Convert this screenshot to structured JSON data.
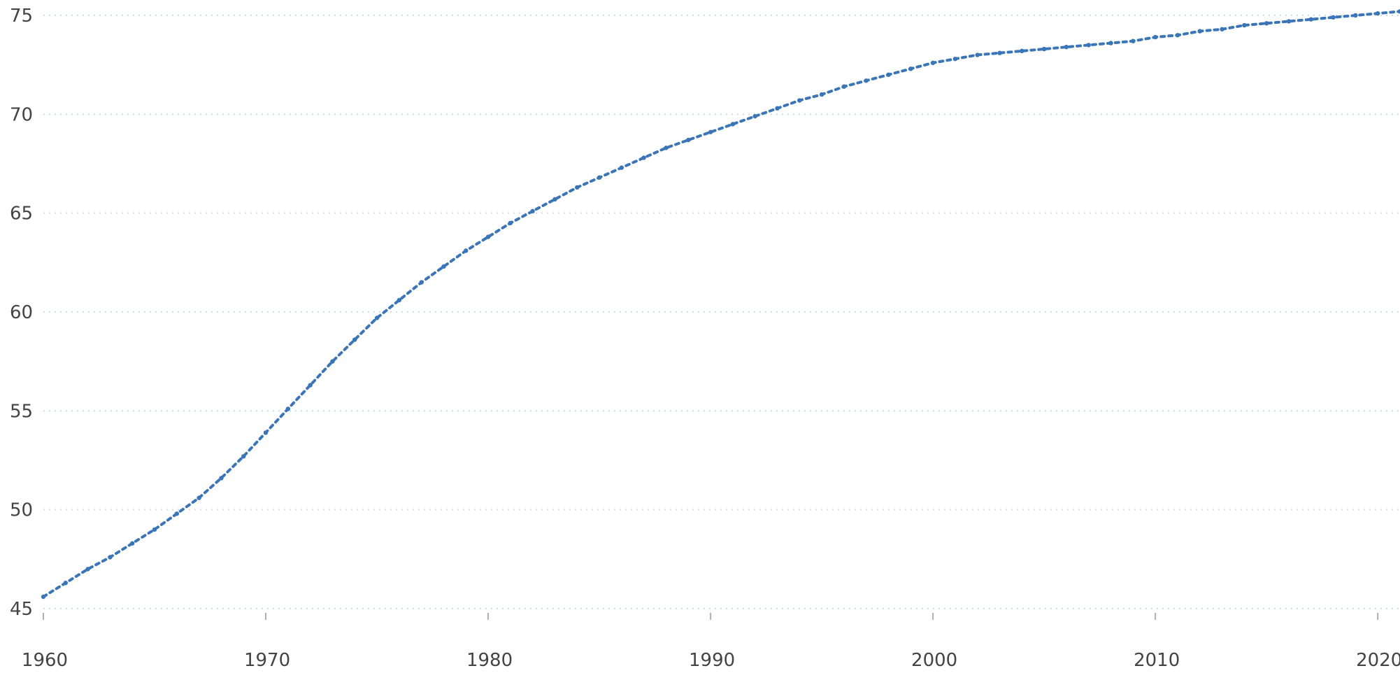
{
  "chart_data": {
    "type": "line",
    "title": "",
    "xlabel": "",
    "ylabel": "",
    "xlim": [
      1960,
      2021
    ],
    "ylim": [
      45,
      75
    ],
    "grid": true,
    "x_ticks": [
      "1960",
      "1970",
      "1980",
      "1990",
      "2000",
      "2010",
      "2020"
    ],
    "y_ticks": [
      "45",
      "50",
      "55",
      "60",
      "65",
      "70",
      "75"
    ],
    "series": [
      {
        "color": "#3a75b8",
        "x": [
          1960,
          1961,
          1962,
          1963,
          1964,
          1965,
          1966,
          1967,
          1968,
          1969,
          1970,
          1971,
          1972,
          1973,
          1974,
          1975,
          1976,
          1977,
          1978,
          1979,
          1980,
          1981,
          1982,
          1983,
          1984,
          1985,
          1986,
          1987,
          1988,
          1989,
          1990,
          1991,
          1992,
          1993,
          1994,
          1995,
          1996,
          1997,
          1998,
          1999,
          2000,
          2001,
          2002,
          2003,
          2004,
          2005,
          2006,
          2007,
          2008,
          2009,
          2010,
          2011,
          2012,
          2013,
          2014,
          2015,
          2016,
          2017,
          2018,
          2019,
          2020,
          2021
        ],
        "y": [
          45.6,
          46.3,
          47.0,
          47.6,
          48.3,
          49.0,
          49.8,
          50.6,
          51.6,
          52.7,
          53.9,
          55.1,
          56.3,
          57.5,
          58.6,
          59.7,
          60.6,
          61.5,
          62.3,
          63.1,
          63.8,
          64.5,
          65.1,
          65.7,
          66.3,
          66.8,
          67.3,
          67.8,
          68.3,
          68.7,
          69.1,
          69.5,
          69.9,
          70.3,
          70.7,
          71.0,
          71.4,
          71.7,
          72.0,
          72.3,
          72.6,
          72.8,
          73.0,
          73.1,
          73.2,
          73.3,
          73.4,
          73.5,
          73.6,
          73.7,
          73.9,
          74.0,
          74.2,
          74.3,
          74.5,
          74.6,
          74.7,
          74.8,
          74.9,
          75.0,
          75.1,
          75.2
        ]
      }
    ]
  }
}
